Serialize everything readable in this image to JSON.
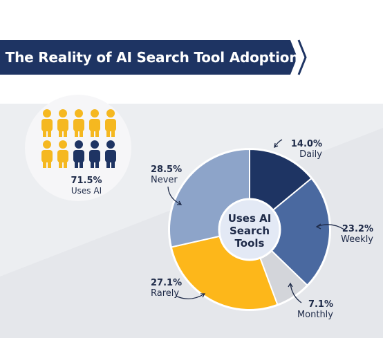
{
  "banner": {
    "title": "The Reality of AI Search Tool Adoption"
  },
  "people": {
    "total": 10,
    "highlighted": 7,
    "percent_label": "71.5%",
    "label": "Uses AI",
    "highlight_color": "#F5B820",
    "other_color": "#1E3463"
  },
  "center_label_lines": [
    "Uses AI",
    "Search",
    "Tools"
  ],
  "colors": {
    "banner": "#1E3463",
    "background": "#ECEDF0",
    "panel": "#F2F3F6",
    "text": "#1E2A48"
  },
  "chart_data": {
    "type": "pie",
    "title": "The Reality of AI Search Tool Adoption",
    "slices": [
      {
        "label": "Daily",
        "value": 14.0,
        "value_label": "14.0%",
        "color": "#1E3463"
      },
      {
        "label": "Weekly",
        "value": 23.2,
        "value_label": "23.2%",
        "color": "#4A69A0"
      },
      {
        "label": "Monthly",
        "value": 7.1,
        "value_label": "7.1%",
        "color": "#D3D5DA"
      },
      {
        "label": "Rarely",
        "value": 27.1,
        "value_label": "27.1%",
        "color": "#FDB71A"
      },
      {
        "label": "Never",
        "value": 28.5,
        "value_label": "28.5%",
        "color": "#8DA4C9"
      }
    ],
    "center_text": "Uses AI Search Tools",
    "legend": "callouts"
  }
}
